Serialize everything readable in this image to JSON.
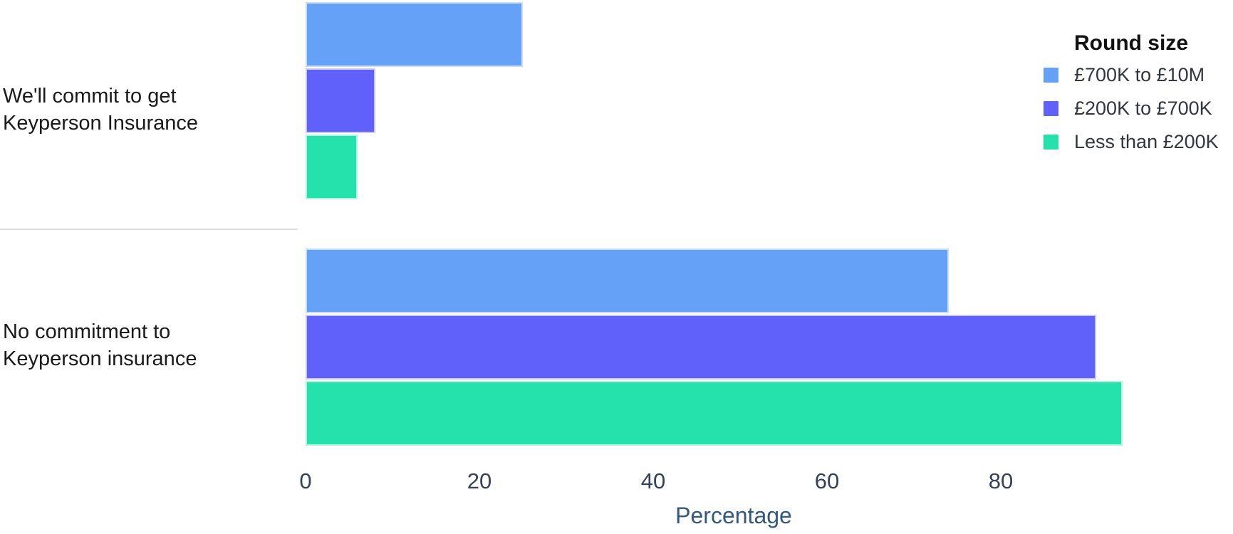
{
  "chart_data": {
    "type": "bar",
    "orientation": "horizontal",
    "title": "",
    "xlabel": "Percentage",
    "ylabel": "",
    "categories": [
      "We'll commit to get\nKeyperson Insurance",
      "No commitment to\nKeyperson insurance"
    ],
    "series": [
      {
        "name": "£700K to £10M",
        "color": "#65A2F7",
        "values": [
          25,
          74
        ]
      },
      {
        "name": "£200K to £700K",
        "color": "#5F61FA",
        "values": [
          8,
          91
        ]
      },
      {
        "name": "Less than £200K",
        "color": "#25E2AD",
        "values": [
          6,
          94
        ]
      }
    ],
    "x_ticks": [
      0,
      20,
      40,
      60,
      80
    ],
    "xlim": [
      0,
      98
    ],
    "grid": false,
    "legend_title": "Round size",
    "legend_position": "top-right",
    "colors": {
      "tick_label": "#33415C",
      "axis_label": "#33587F",
      "category_label": "#1A1A1A",
      "legend_title": "#111111",
      "legend_item": "#33373D",
      "divider": "#DDDDDD",
      "background": "#FFFFFF"
    }
  }
}
